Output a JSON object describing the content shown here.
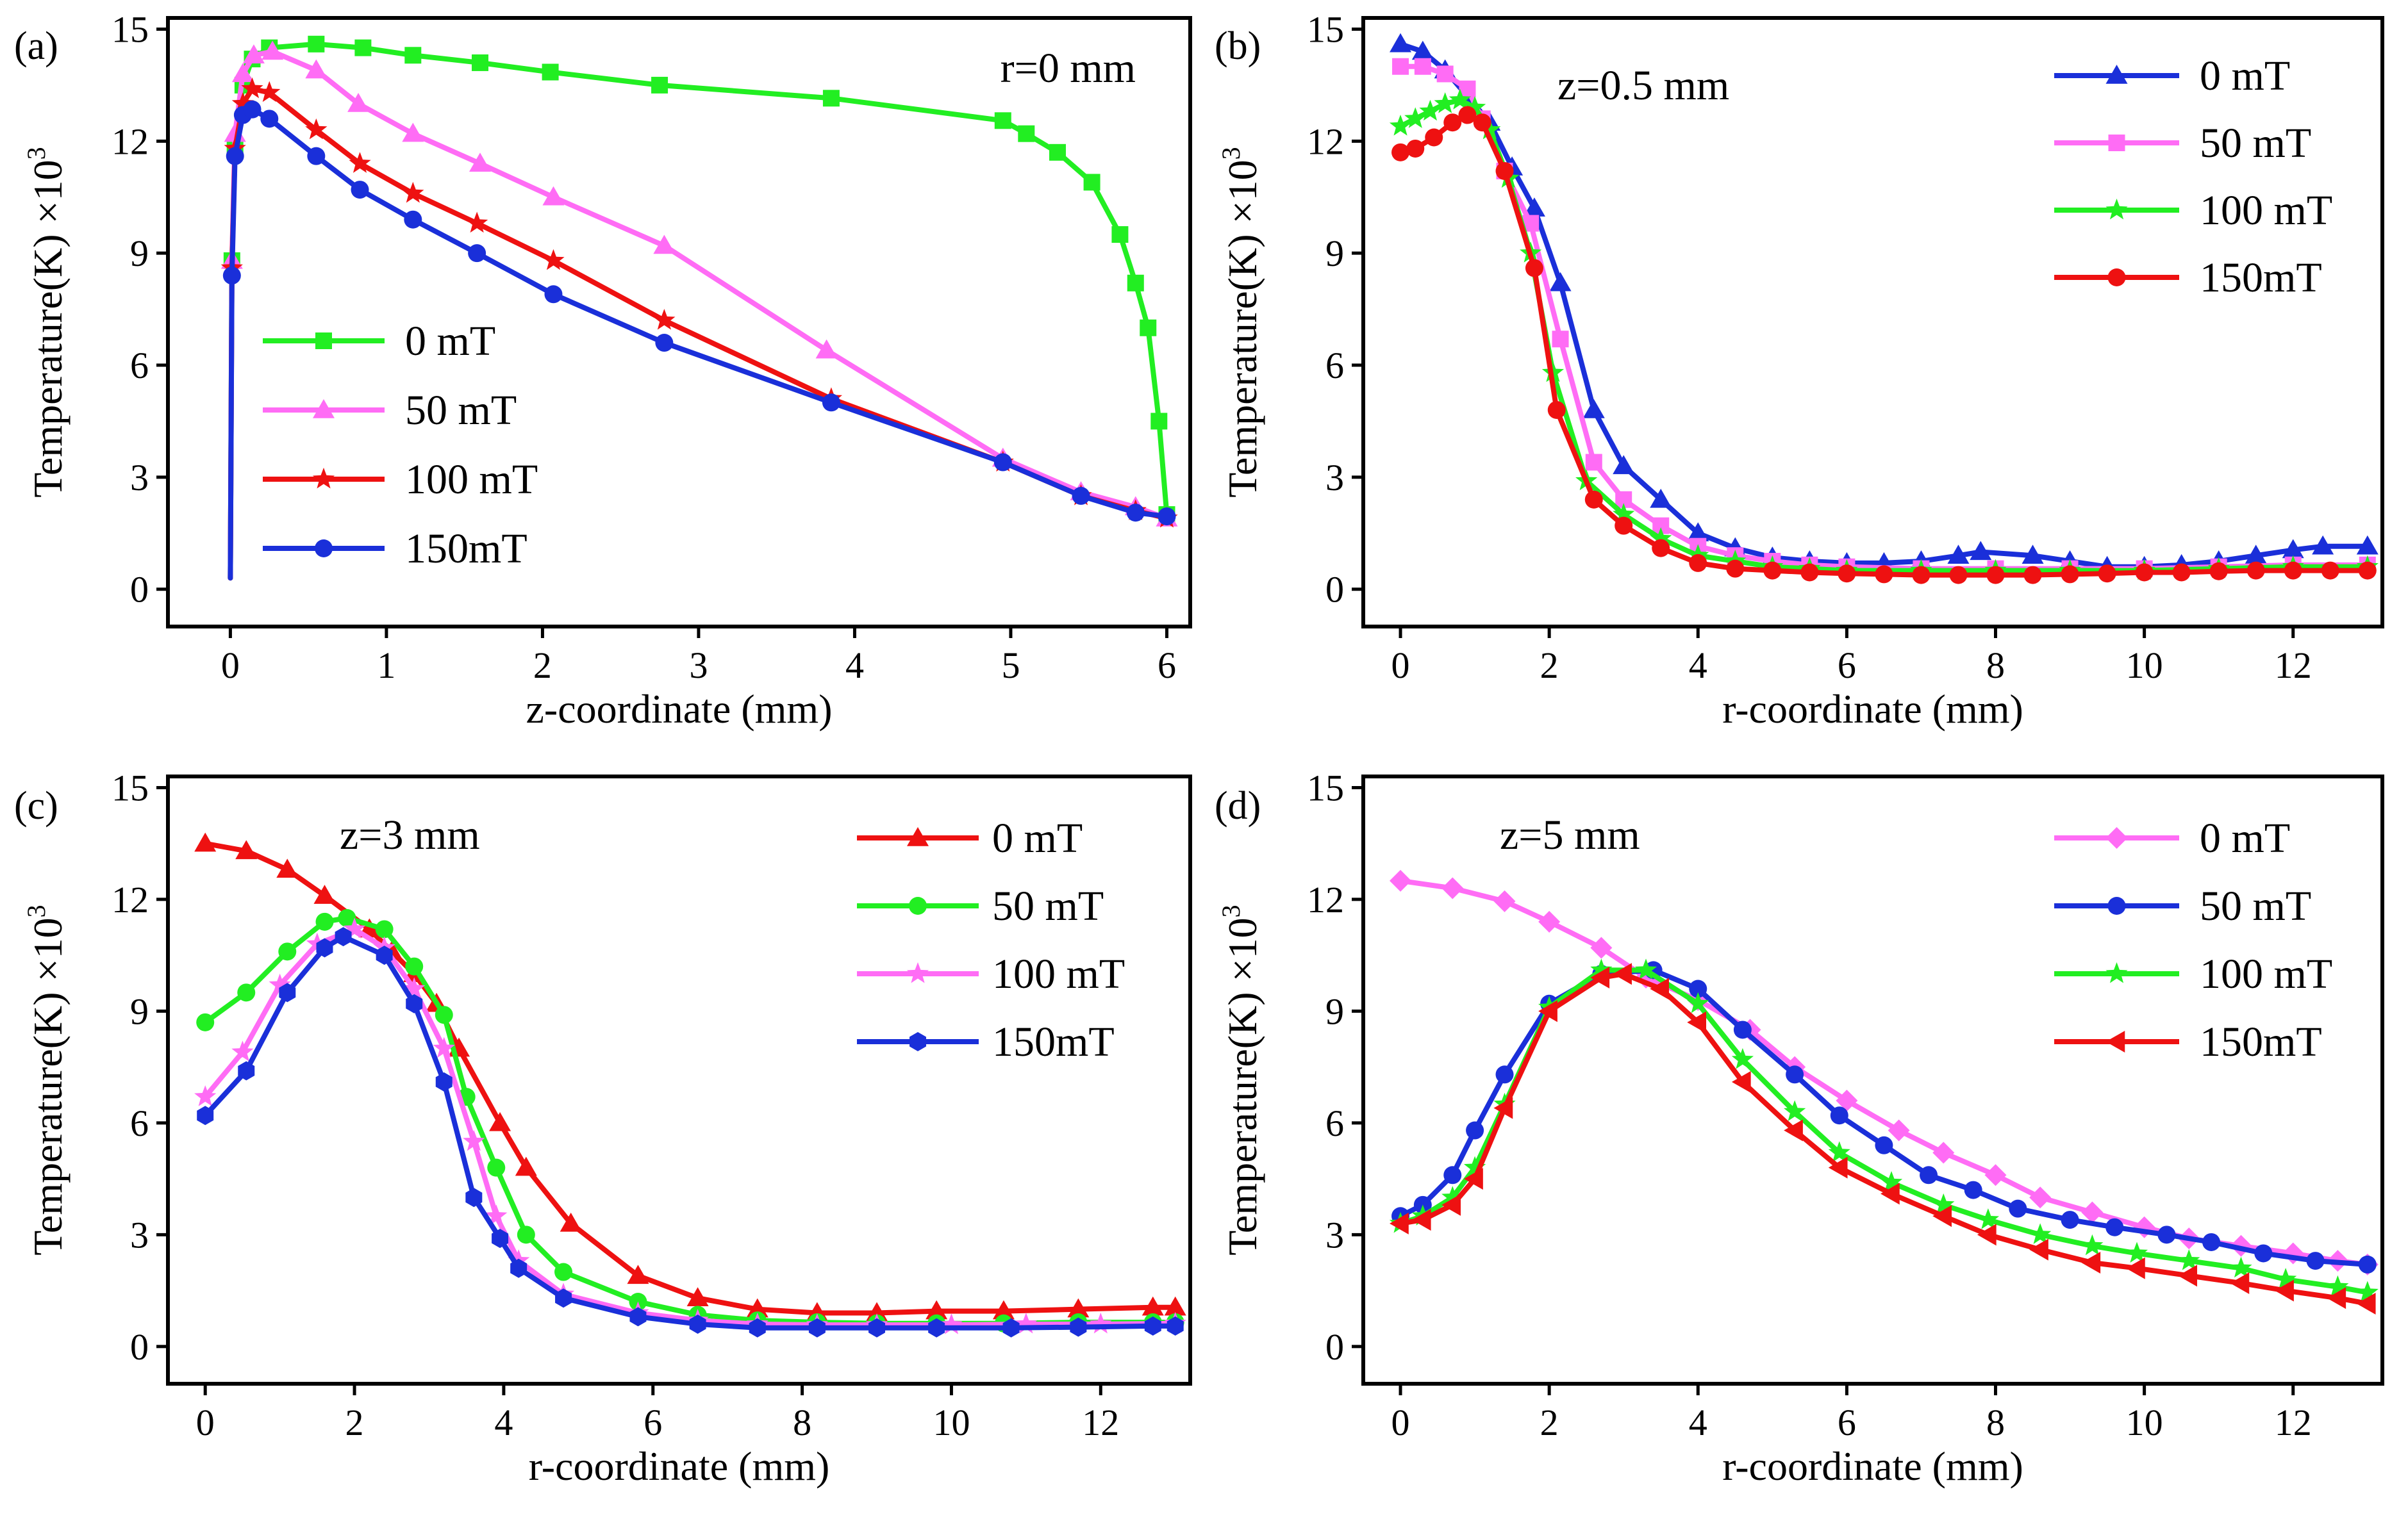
{
  "colors": {
    "green": "#22ee22",
    "magenta": "#ff6cf5",
    "red": "#ee1111",
    "blue": "#1a2fd9"
  },
  "chart_data": [
    {
      "id": "a",
      "type": "line",
      "panel_label": "(a)",
      "annotation": "r=0 mm",
      "xlabel": "z-coordinate (mm)",
      "ylabel": "Temperature(K) ×10",
      "ylabel_exponent": "3",
      "xlim": [
        -0.4,
        6.15
      ],
      "ylim": [
        -1.0,
        15.3
      ],
      "xticks": [
        0,
        1,
        2,
        3,
        4,
        5,
        6
      ],
      "yticks": [
        0,
        3,
        6,
        9,
        12,
        15
      ],
      "legend_position": "center-left",
      "series": [
        {
          "name": "0 mT",
          "color": "green",
          "marker": "square",
          "x": [
            0,
            0.01,
            0.03,
            0.08,
            0.14,
            0.25,
            0.55,
            0.85,
            1.17,
            1.6,
            2.05,
            2.75,
            3.85,
            4.95,
            5.1,
            5.3,
            5.52,
            5.7,
            5.8,
            5.88,
            5.95,
            6.0
          ],
          "y": [
            0.3,
            8.8,
            11.8,
            13.5,
            14.2,
            14.5,
            14.6,
            14.5,
            14.3,
            14.1,
            13.85,
            13.5,
            13.15,
            12.55,
            12.2,
            11.7,
            10.9,
            9.5,
            8.2,
            7.0,
            4.5,
            2.0
          ]
        },
        {
          "name": "50 mT",
          "color": "magenta",
          "marker": "triangle",
          "x": [
            0,
            0.01,
            0.03,
            0.08,
            0.15,
            0.27,
            0.55,
            0.82,
            1.17,
            1.6,
            2.07,
            2.78,
            3.82,
            4.95,
            5.45,
            5.8,
            6.0
          ],
          "y": [
            0.3,
            8.8,
            12.2,
            13.8,
            14.3,
            14.4,
            13.9,
            13.0,
            12.2,
            11.4,
            10.5,
            9.2,
            6.4,
            3.5,
            2.6,
            2.2,
            1.9
          ]
        },
        {
          "name": "100 mT",
          "color": "red",
          "marker": "star",
          "x": [
            0,
            0.01,
            0.03,
            0.08,
            0.14,
            0.25,
            0.55,
            0.83,
            1.17,
            1.58,
            2.07,
            2.78,
            3.85,
            4.95,
            5.45,
            5.8,
            6.0
          ],
          "y": [
            0.3,
            8.6,
            11.8,
            13.0,
            13.4,
            13.3,
            12.3,
            11.4,
            10.6,
            9.8,
            8.8,
            7.2,
            5.1,
            3.4,
            2.5,
            2.1,
            1.9
          ]
        },
        {
          "name": "150mT",
          "color": "blue",
          "marker": "circle",
          "x": [
            0,
            0.01,
            0.03,
            0.08,
            0.14,
            0.25,
            0.55,
            0.83,
            1.17,
            1.58,
            2.07,
            2.78,
            3.85,
            4.95,
            5.45,
            5.8,
            6.0
          ],
          "y": [
            0.3,
            8.4,
            11.6,
            12.7,
            12.85,
            12.6,
            11.6,
            10.7,
            9.9,
            9.0,
            7.9,
            6.6,
            5.0,
            3.4,
            2.5,
            2.05,
            1.95
          ]
        }
      ]
    },
    {
      "id": "b",
      "type": "line",
      "panel_label": "(b)",
      "annotation": "z=0.5 mm",
      "xlabel": "r-coordinate (mm)",
      "ylabel": "Temperature(K) ×10",
      "ylabel_exponent": "3",
      "xlim": [
        -0.5,
        13.2
      ],
      "ylim": [
        -1.0,
        15.3
      ],
      "xticks": [
        0,
        2,
        4,
        6,
        8,
        10,
        12
      ],
      "yticks": [
        0,
        3,
        6,
        9,
        12,
        15
      ],
      "legend_position": "top-right",
      "series": [
        {
          "name": "0 mT",
          "color": "blue",
          "marker": "triangle",
          "x": [
            0,
            0.3,
            0.6,
            0.9,
            1.2,
            1.5,
            1.8,
            2.15,
            2.6,
            3.0,
            3.5,
            4.0,
            4.5,
            5.0,
            5.5,
            6.0,
            6.5,
            7.0,
            7.5,
            7.8,
            8.5,
            9.0,
            9.5,
            10.0,
            10.5,
            11.0,
            11.5,
            12.0,
            12.4,
            13.0
          ],
          "y": [
            14.6,
            14.4,
            13.9,
            13.2,
            12.5,
            11.3,
            10.2,
            8.2,
            4.8,
            3.3,
            2.4,
            1.5,
            1.1,
            0.85,
            0.75,
            0.7,
            0.7,
            0.75,
            0.9,
            1.0,
            0.9,
            0.75,
            0.6,
            0.6,
            0.65,
            0.75,
            0.9,
            1.05,
            1.15,
            1.15
          ]
        },
        {
          "name": "50 mT",
          "color": "magenta",
          "marker": "square",
          "x": [
            0,
            0.3,
            0.6,
            0.9,
            1.1,
            1.4,
            1.75,
            2.15,
            2.6,
            3.0,
            3.5,
            4.0,
            4.5,
            5.0,
            5.5,
            6.0,
            7.0,
            8.0,
            9.0,
            10.0,
            11.0,
            12.0,
            13.0
          ],
          "y": [
            14.0,
            14.0,
            13.8,
            13.4,
            12.6,
            11.2,
            9.8,
            6.7,
            3.4,
            2.4,
            1.7,
            1.15,
            0.9,
            0.75,
            0.65,
            0.6,
            0.55,
            0.55,
            0.55,
            0.55,
            0.6,
            0.65,
            0.65
          ]
        },
        {
          "name": "100 mT",
          "color": "green",
          "marker": "star",
          "x": [
            0,
            0.2,
            0.4,
            0.6,
            0.8,
            1.0,
            1.2,
            1.45,
            1.75,
            2.05,
            2.5,
            3.0,
            3.5,
            4.0,
            4.5,
            5.0,
            5.5,
            6.0,
            7.0,
            8.0,
            9.0,
            10.0,
            11.0,
            12.0,
            13.0
          ],
          "y": [
            12.4,
            12.6,
            12.8,
            13.0,
            13.1,
            12.9,
            12.3,
            11.0,
            9.0,
            5.8,
            2.9,
            2.0,
            1.35,
            0.9,
            0.75,
            0.6,
            0.55,
            0.5,
            0.5,
            0.5,
            0.5,
            0.5,
            0.55,
            0.6,
            0.6
          ]
        },
        {
          "name": "150mT",
          "color": "red",
          "marker": "circle",
          "x": [
            0,
            0.2,
            0.45,
            0.7,
            0.9,
            1.1,
            1.4,
            1.8,
            2.1,
            2.6,
            3.0,
            3.5,
            4.0,
            4.5,
            5.0,
            5.5,
            6.0,
            6.5,
            7.0,
            7.5,
            8.0,
            8.5,
            9.0,
            9.5,
            10.0,
            10.5,
            11.0,
            11.5,
            12.0,
            12.5,
            13.0
          ],
          "y": [
            11.7,
            11.8,
            12.1,
            12.5,
            12.7,
            12.5,
            11.2,
            8.6,
            4.8,
            2.4,
            1.7,
            1.1,
            0.7,
            0.55,
            0.5,
            0.45,
            0.42,
            0.4,
            0.38,
            0.38,
            0.38,
            0.38,
            0.4,
            0.42,
            0.45,
            0.45,
            0.48,
            0.5,
            0.5,
            0.5,
            0.5
          ]
        }
      ]
    },
    {
      "id": "c",
      "type": "line",
      "panel_label": "(c)",
      "annotation": "z=3 mm",
      "xlabel": "r-coordinate (mm)",
      "ylabel": "Temperature(K) ×10",
      "ylabel_exponent": "3",
      "xlim": [
        -0.5,
        13.2
      ],
      "ylim": [
        -1.0,
        15.3
      ],
      "xticks": [
        0,
        2,
        4,
        6,
        8,
        10,
        12
      ],
      "yticks": [
        0,
        3,
        6,
        9,
        12,
        15
      ],
      "legend_position": "top-right",
      "series": [
        {
          "name": "0 mT",
          "color": "red",
          "marker": "triangle",
          "x": [
            0,
            0.55,
            1.1,
            1.6,
            2.2,
            2.5,
            2.8,
            3.1,
            3.4,
            3.95,
            4.3,
            4.9,
            5.8,
            6.6,
            7.4,
            8.2,
            9.0,
            9.8,
            10.7,
            11.7,
            12.7,
            13.0
          ],
          "y": [
            13.5,
            13.3,
            12.8,
            12.1,
            11.2,
            10.6,
            10.0,
            9.2,
            8.0,
            6.0,
            4.8,
            3.3,
            1.9,
            1.3,
            1.0,
            0.9,
            0.9,
            0.95,
            0.95,
            1.0,
            1.05,
            1.05
          ]
        },
        {
          "name": "50 mT",
          "color": "green",
          "marker": "circle",
          "x": [
            0,
            0.55,
            1.1,
            1.6,
            1.9,
            2.4,
            2.8,
            3.2,
            3.5,
            3.9,
            4.3,
            4.8,
            5.8,
            6.6,
            7.4,
            8.2,
            9.0,
            9.8,
            10.7,
            11.7,
            12.7,
            13.0
          ],
          "y": [
            8.7,
            9.5,
            10.6,
            11.4,
            11.5,
            11.2,
            10.2,
            8.9,
            6.7,
            4.8,
            3.0,
            2.0,
            1.2,
            0.85,
            0.7,
            0.65,
            0.62,
            0.62,
            0.62,
            0.65,
            0.65,
            0.65
          ]
        },
        {
          "name": "100 mT",
          "color": "magenta",
          "marker": "star",
          "x": [
            0,
            0.5,
            1.0,
            1.5,
            2.0,
            2.4,
            2.8,
            3.2,
            3.6,
            3.9,
            4.2,
            4.8,
            5.8,
            6.6,
            7.4,
            8.2,
            9.0,
            10.0,
            11.0,
            12.0,
            13.0
          ],
          "y": [
            6.7,
            7.9,
            9.7,
            10.8,
            11.2,
            10.7,
            9.6,
            8.0,
            5.5,
            3.5,
            2.3,
            1.4,
            0.9,
            0.7,
            0.6,
            0.58,
            0.58,
            0.58,
            0.6,
            0.6,
            0.62
          ]
        },
        {
          "name": "150mT",
          "color": "blue",
          "marker": "hexagon",
          "x": [
            0,
            0.55,
            1.1,
            1.6,
            1.85,
            2.4,
            2.8,
            3.2,
            3.6,
            3.95,
            4.2,
            4.8,
            5.8,
            6.6,
            7.4,
            8.2,
            9.0,
            9.8,
            10.8,
            11.7,
            12.7,
            13.0
          ],
          "y": [
            6.2,
            7.4,
            9.5,
            10.7,
            11.0,
            10.5,
            9.2,
            7.1,
            4.0,
            2.9,
            2.1,
            1.3,
            0.8,
            0.6,
            0.5,
            0.5,
            0.5,
            0.5,
            0.5,
            0.52,
            0.55,
            0.55
          ]
        }
      ]
    },
    {
      "id": "d",
      "type": "line",
      "panel_label": "(d)",
      "annotation": "z=5 mm",
      "xlabel": "r-coordinate (mm)",
      "ylabel": "Temperature(K) ×10",
      "ylabel_exponent": "3",
      "xlim": [
        -0.5,
        13.2
      ],
      "ylim": [
        -1.0,
        15.3
      ],
      "xticks": [
        0,
        2,
        4,
        6,
        8,
        10,
        12
      ],
      "yticks": [
        0,
        3,
        6,
        9,
        12,
        15
      ],
      "legend_position": "top-right",
      "series": [
        {
          "name": "0 mT",
          "color": "magenta",
          "marker": "diamond",
          "x": [
            0,
            0.7,
            1.4,
            2.0,
            2.7,
            3.3,
            4.0,
            4.7,
            5.3,
            6.0,
            6.7,
            7.3,
            8.0,
            8.6,
            9.3,
            10.0,
            10.6,
            11.3,
            12.0,
            12.6,
            13.0
          ],
          "y": [
            12.5,
            12.3,
            11.95,
            11.4,
            10.7,
            9.9,
            9.3,
            8.5,
            7.5,
            6.6,
            5.8,
            5.2,
            4.6,
            4.0,
            3.6,
            3.2,
            2.9,
            2.7,
            2.5,
            2.3,
            2.2
          ]
        },
        {
          "name": "50 mT",
          "color": "blue",
          "marker": "circle",
          "x": [
            0,
            0.3,
            0.7,
            1.0,
            1.4,
            2.0,
            2.7,
            3.4,
            4.0,
            4.6,
            5.3,
            5.9,
            6.5,
            7.1,
            7.7,
            8.3,
            9.0,
            9.6,
            10.3,
            10.9,
            11.6,
            12.3,
            13.0
          ],
          "y": [
            3.5,
            3.8,
            4.6,
            5.8,
            7.3,
            9.2,
            10.0,
            10.1,
            9.6,
            8.5,
            7.3,
            6.2,
            5.4,
            4.6,
            4.2,
            3.7,
            3.4,
            3.2,
            3.0,
            2.8,
            2.5,
            2.3,
            2.2
          ]
        },
        {
          "name": "100 mT",
          "color": "green",
          "marker": "star",
          "x": [
            0,
            0.3,
            0.7,
            1.0,
            1.4,
            2.0,
            2.7,
            3.3,
            4.0,
            4.6,
            5.3,
            5.9,
            6.6,
            7.3,
            7.9,
            8.6,
            9.3,
            9.9,
            10.6,
            11.3,
            11.9,
            12.6,
            13.0
          ],
          "y": [
            3.3,
            3.5,
            4.0,
            4.8,
            6.5,
            9.1,
            10.1,
            10.1,
            9.2,
            7.7,
            6.3,
            5.2,
            4.4,
            3.8,
            3.4,
            3.0,
            2.7,
            2.5,
            2.3,
            2.1,
            1.8,
            1.6,
            1.45
          ]
        },
        {
          "name": "150mT",
          "color": "red",
          "marker": "triangle-left",
          "x": [
            0,
            0.3,
            0.7,
            1.0,
            1.4,
            2.0,
            2.7,
            3.0,
            3.5,
            4.0,
            4.6,
            5.3,
            5.9,
            6.6,
            7.3,
            7.9,
            8.6,
            9.3,
            9.9,
            10.6,
            11.3,
            11.9,
            12.6,
            13.0
          ],
          "y": [
            3.3,
            3.4,
            3.8,
            4.5,
            6.4,
            9.0,
            9.9,
            10.0,
            9.6,
            8.7,
            7.1,
            5.8,
            4.8,
            4.1,
            3.5,
            3.0,
            2.6,
            2.25,
            2.1,
            1.9,
            1.7,
            1.5,
            1.3,
            1.15
          ]
        }
      ]
    }
  ]
}
